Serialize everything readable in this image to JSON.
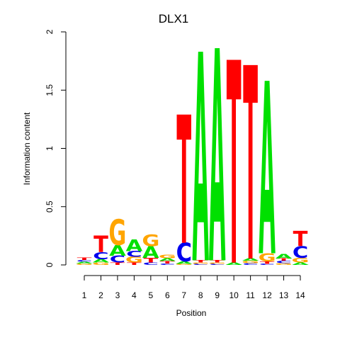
{
  "chart_data": {
    "type": "sequence-logo",
    "title": "DLX1",
    "xlabel": "Position",
    "ylabel": "Information content",
    "ylim": [
      0,
      2
    ],
    "y_ticks": [
      "0",
      "0.5",
      "1",
      "1.5",
      "2"
    ],
    "y_tick_values": [
      0,
      0.5,
      1,
      1.5,
      2
    ],
    "x_ticks": [
      "1",
      "2",
      "3",
      "4",
      "5",
      "6",
      "7",
      "8",
      "9",
      "10",
      "11",
      "12",
      "13",
      "14"
    ],
    "colors": {
      "A": "#00e000",
      "C": "#0000ee",
      "G": "#ffa500",
      "T": "#ff0000"
    },
    "positions": [
      {
        "pos": 1,
        "stack": [
          [
            "G",
            0.012
          ],
          [
            "A",
            0.014
          ],
          [
            "C",
            0.016
          ],
          [
            "T",
            0.018
          ]
        ]
      },
      {
        "pos": 2,
        "stack": [
          [
            "G",
            0.02
          ],
          [
            "A",
            0.03
          ],
          [
            "C",
            0.06
          ],
          [
            "T",
            0.14
          ]
        ]
      },
      {
        "pos": 3,
        "stack": [
          [
            "T",
            0.02
          ],
          [
            "C",
            0.06
          ],
          [
            "A",
            0.09
          ],
          [
            "G",
            0.22
          ]
        ]
      },
      {
        "pos": 4,
        "stack": [
          [
            "T",
            0.02
          ],
          [
            "G",
            0.05
          ],
          [
            "C",
            0.05
          ],
          [
            "A",
            0.1
          ]
        ]
      },
      {
        "pos": 5,
        "stack": [
          [
            "C",
            0.02
          ],
          [
            "T",
            0.04
          ],
          [
            "A",
            0.1
          ],
          [
            "G",
            0.1
          ]
        ]
      },
      {
        "pos": 6,
        "stack": [
          [
            "C",
            0.012
          ],
          [
            "T",
            0.02
          ],
          [
            "A",
            0.025
          ],
          [
            "G",
            0.03
          ]
        ]
      },
      {
        "pos": 7,
        "stack": [
          [
            "G",
            0.01
          ],
          [
            "A",
            0.02
          ],
          [
            "C",
            0.16
          ],
          [
            "T",
            1.1
          ]
        ]
      },
      {
        "pos": 8,
        "stack": [
          [
            "C",
            0.01
          ],
          [
            "G",
            0.01
          ],
          [
            "T",
            0.02
          ],
          [
            "A",
            1.79
          ]
        ]
      },
      {
        "pos": 9,
        "stack": [
          [
            "C",
            0.01
          ],
          [
            "G",
            0.01
          ],
          [
            "T",
            0.02
          ],
          [
            "A",
            1.82
          ]
        ]
      },
      {
        "pos": 10,
        "stack": [
          [
            "A",
            0.02
          ],
          [
            "T",
            1.74
          ]
        ]
      },
      {
        "pos": 11,
        "stack": [
          [
            "C",
            0.015
          ],
          [
            "G",
            0.02
          ],
          [
            "A",
            0.02
          ],
          [
            "T",
            1.66
          ]
        ]
      },
      {
        "pos": 12,
        "stack": [
          [
            "C",
            0.01
          ],
          [
            "T",
            0.02
          ],
          [
            "G",
            0.07
          ],
          [
            "A",
            1.48
          ]
        ]
      },
      {
        "pos": 13,
        "stack": [
          [
            "G",
            0.015
          ],
          [
            "C",
            0.02
          ],
          [
            "T",
            0.02
          ],
          [
            "A",
            0.04
          ]
        ]
      },
      {
        "pos": 14,
        "stack": [
          [
            "A",
            0.02
          ],
          [
            "G",
            0.04
          ],
          [
            "C",
            0.1
          ],
          [
            "T",
            0.13
          ]
        ]
      }
    ]
  }
}
